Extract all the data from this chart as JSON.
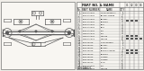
{
  "bg_color": "#f0ede8",
  "diagram_bg": "#f0ede8",
  "line_color": "#5a5a5a",
  "text_color": "#1a1a1a",
  "border_color": "#777777",
  "table_bg": "#f0ede8",
  "check_color": "#555555",
  "title_text": "PART NO. & NAME",
  "rows": [
    [
      "1",
      "20100AC000",
      "CROSSMEMBER COMPL",
      "1",
      "0",
      "0",
      "0",
      "0"
    ],
    [
      "2",
      "20102AC000",
      "BRACKET-CMEMBER",
      "2",
      "0",
      "0",
      "0",
      "0"
    ],
    [
      "3",
      "20107AC000",
      "BRACKET",
      "2",
      "0",
      "0",
      "0",
      "0"
    ],
    [
      "4",
      "20171AC000",
      "BUSHING",
      "4",
      "1",
      "1",
      "1",
      "0"
    ],
    [
      "5",
      "20182AC000",
      "BOLT",
      "4",
      "0",
      "0",
      "0",
      "0"
    ],
    [
      "6",
      "20192AC000",
      "BOLT",
      "4",
      "0",
      "0",
      "0",
      "0"
    ],
    [
      "7",
      "20202AC000",
      "NUT",
      "4",
      "0",
      "0",
      "0",
      "0"
    ],
    [
      "8",
      "41322AA010",
      "NUT",
      "4",
      "0",
      "0",
      "0",
      "0"
    ],
    [
      "9",
      "41322AA020",
      "WASHER",
      "4",
      "1",
      "1",
      "1",
      "0"
    ],
    [
      "10",
      "41322AA021",
      "WASHER",
      "8",
      "1",
      "1",
      "1",
      "1"
    ],
    [
      "11",
      "901000308",
      "CROSSMEMBER",
      "1",
      "0",
      "0",
      "0",
      "0"
    ],
    [
      "12",
      "901000310",
      "BRACKET",
      "1",
      "0",
      "0",
      "0",
      "0"
    ],
    [
      "13",
      "902000006",
      "BRACKET",
      "1",
      "0",
      "0",
      "0",
      "0"
    ],
    [
      "14",
      "902000008",
      "BUSHING-XMEMBER",
      "4",
      "1",
      "1",
      "1",
      "0"
    ],
    [
      "15",
      "902000010",
      "BUSHING",
      "2",
      "1",
      "1",
      "1",
      "0"
    ],
    [
      "16",
      "903000006",
      "STOPPER",
      "2",
      "0",
      "0",
      "0",
      "0"
    ],
    [
      "17",
      "903000008",
      "STOPPER",
      "2",
      "0",
      "0",
      "0",
      "0"
    ],
    [
      "18",
      "903000010",
      "PLATE",
      "2",
      "0",
      "0",
      "0",
      "0"
    ],
    [
      "19",
      "20112AC000",
      "NUT",
      "8",
      "0",
      "0",
      "0",
      "0"
    ],
    [
      "20",
      "20122AC000",
      "WASHER",
      "8",
      "0",
      "0",
      "0",
      "0"
    ]
  ],
  "footer": "41322AA021"
}
